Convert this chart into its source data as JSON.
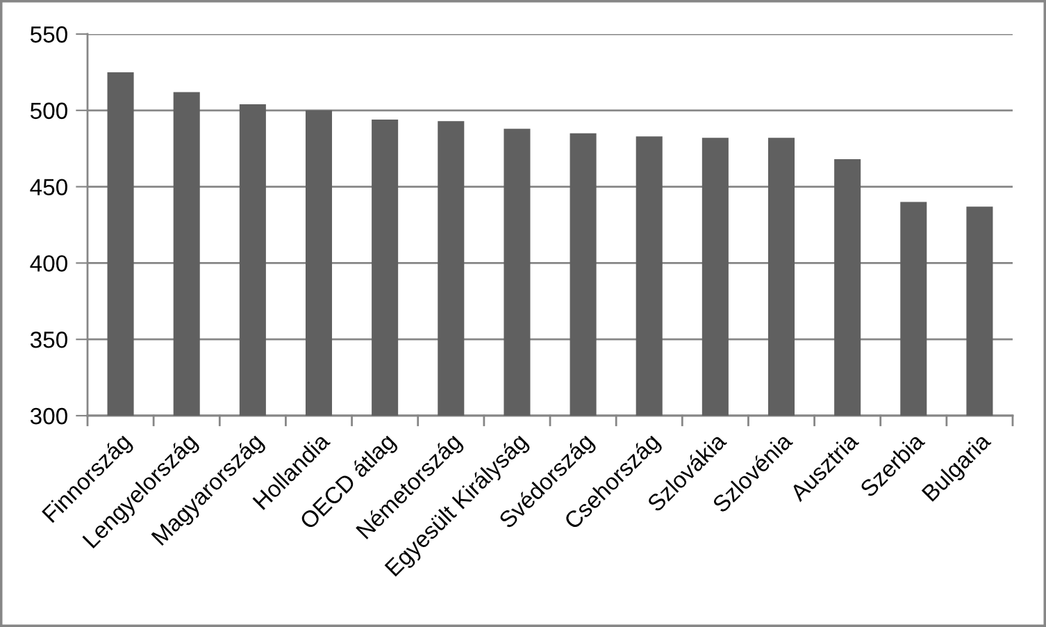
{
  "chart_data": {
    "type": "bar",
    "categories": [
      "Finnország",
      "Lengyelország",
      "Magyarország",
      "Hollandia",
      "OECD átlag",
      "Németország",
      "Egyesült Királyság",
      "Svédország",
      "Csehország",
      "Szlovákia",
      "Szlovénia",
      "Ausztria",
      "Szerbia",
      "Bulgaria"
    ],
    "values": [
      525,
      512,
      504,
      500,
      494,
      493,
      488,
      485,
      483,
      482,
      482,
      468,
      440,
      437
    ],
    "color": "#606060",
    "ylim": [
      300,
      550
    ],
    "yticks": [
      300,
      350,
      400,
      450,
      500,
      550
    ],
    "grid": "y",
    "legend": false
  }
}
